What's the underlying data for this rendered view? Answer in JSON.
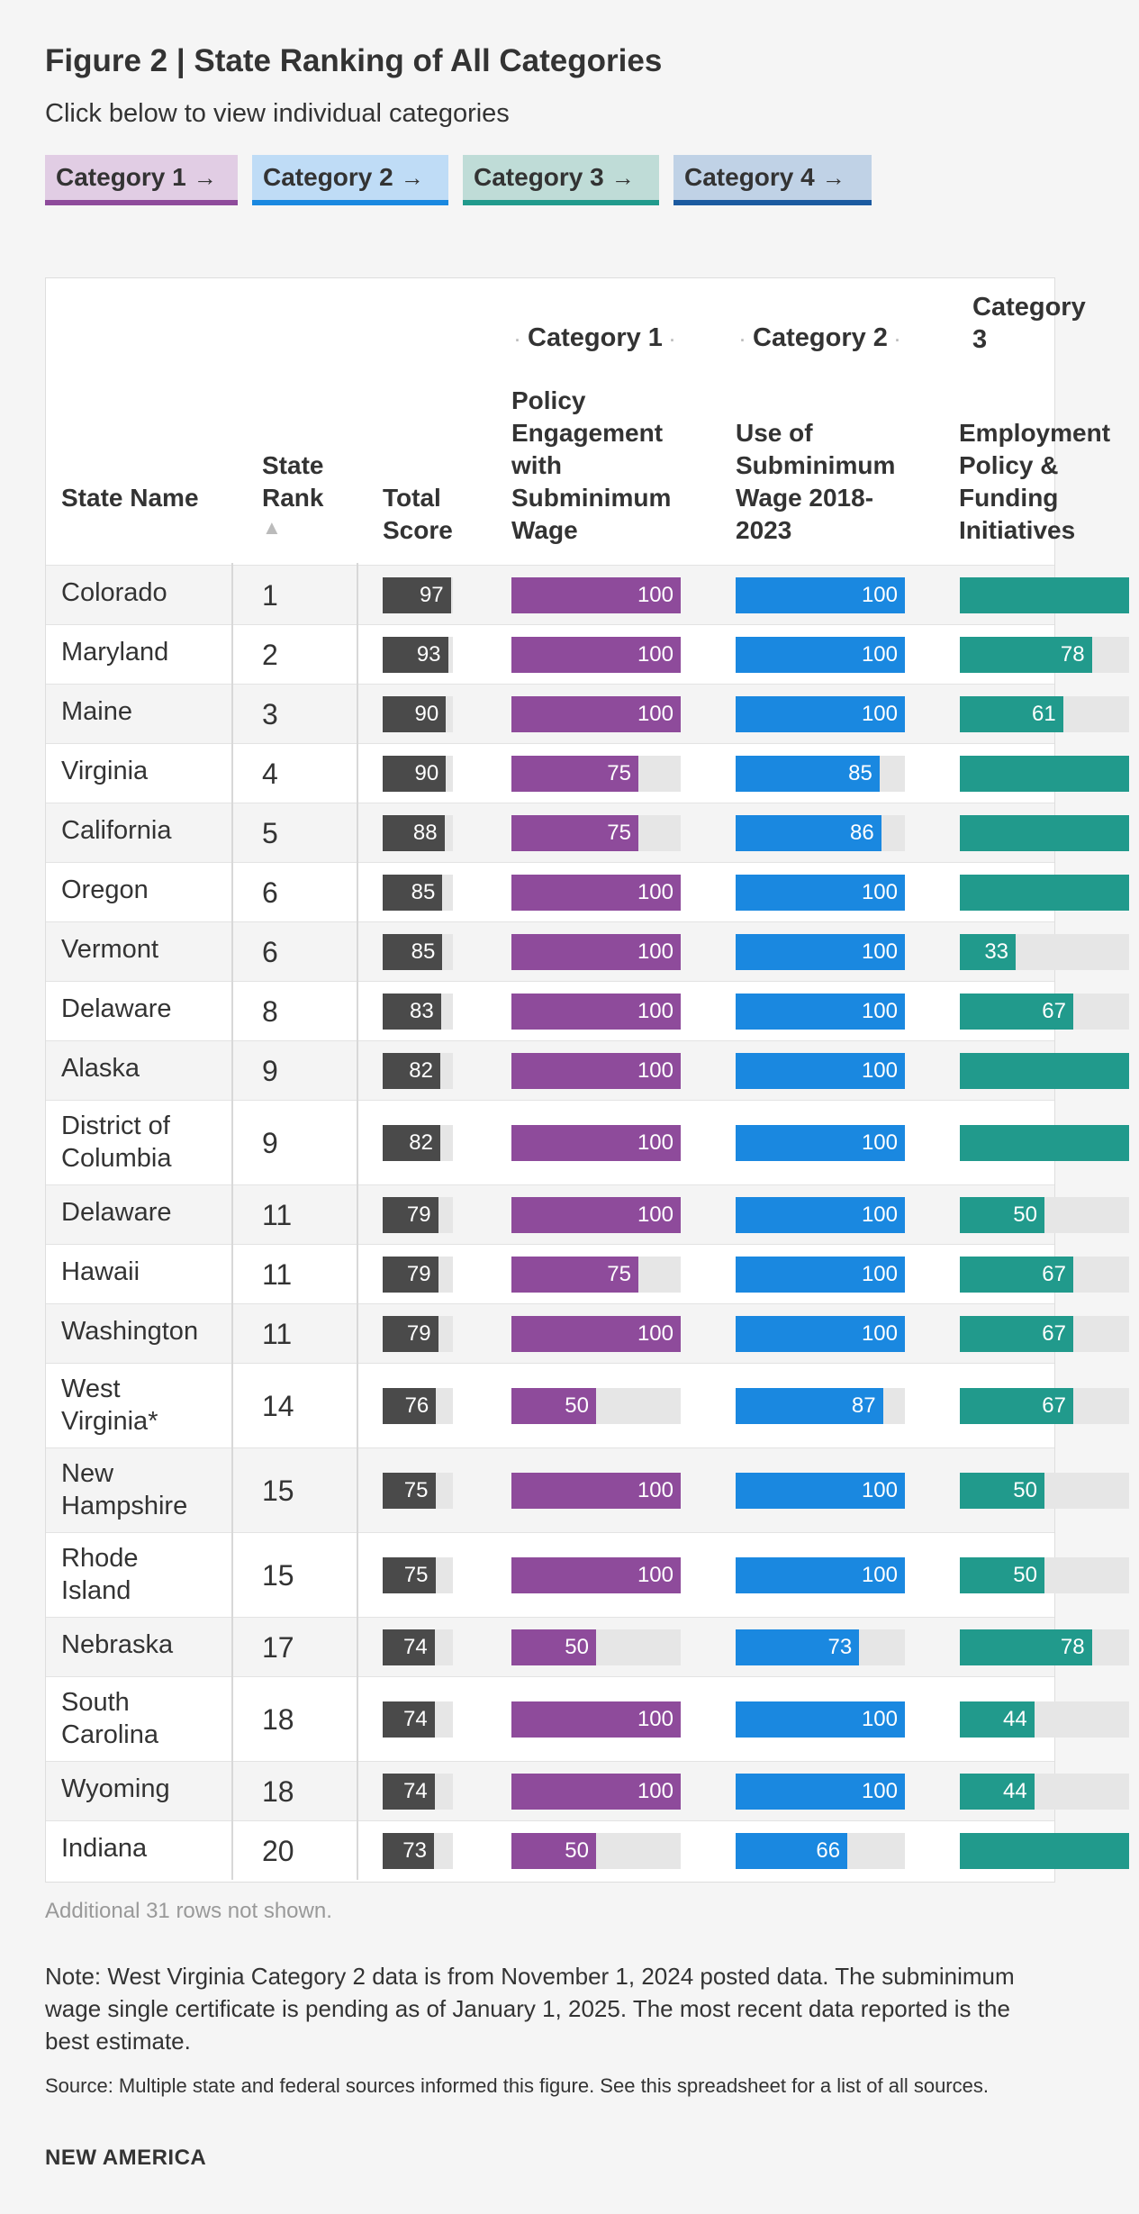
{
  "title": "Figure 2 | State Ranking of All Categories",
  "subtitle": "Click below to view individual categories",
  "buttons": [
    {
      "label": "Category 1",
      "bg": "#e1cde4",
      "border": "#8e4b9b"
    },
    {
      "label": "Category 2",
      "bg": "#bfdcf6",
      "border": "#1a88e0"
    },
    {
      "label": "Category 3",
      "bg": "#bfdcd7",
      "border": "#219a8c"
    },
    {
      "label": "Category 4",
      "bg": "#c0d2e6",
      "border": "#1b5aa0"
    }
  ],
  "headers": {
    "state_name": "State Name",
    "state_rank": "State Rank",
    "sort_indicator": "▲",
    "total_score": "Total Score",
    "group1": "Category 1",
    "group2": "Category 2",
    "group3": "Category 3",
    "col1": "Policy Engagement with Subminimum Wage",
    "col2": "Use of Subminimum Wage 2018-2023",
    "col3": "Employment Policy & Funding Initiatives"
  },
  "colors": {
    "total": "#4a4a4a",
    "cat1": "#8e4b9b",
    "cat2": "#1a88e0",
    "cat3": "#219a8c"
  },
  "chart_data": {
    "type": "table",
    "columns": [
      "State Name",
      "State Rank",
      "Total Score",
      "Policy Engagement with Subminimum Wage",
      "Use of Subminimum Wage 2018-2023",
      "Employment Policy & Funding Initiatives"
    ],
    "max_value": 100,
    "rows": [
      {
        "state": "Colorado",
        "rank": "1",
        "total": 97,
        "cat1": 100,
        "cat2": 100,
        "cat3": 100,
        "cat3_label": ""
      },
      {
        "state": "Maryland",
        "rank": "2",
        "total": 93,
        "cat1": 100,
        "cat2": 100,
        "cat3": 78,
        "cat3_label": "78"
      },
      {
        "state": "Maine",
        "rank": "3",
        "total": 90,
        "cat1": 100,
        "cat2": 100,
        "cat3": 61,
        "cat3_label": "61"
      },
      {
        "state": "Virginia",
        "rank": "4",
        "total": 90,
        "cat1": 75,
        "cat2": 85,
        "cat3": 100,
        "cat3_label": ""
      },
      {
        "state": "California",
        "rank": "5",
        "total": 88,
        "cat1": 75,
        "cat2": 86,
        "cat3": 100,
        "cat3_label": ""
      },
      {
        "state": "Oregon",
        "rank": "6",
        "total": 85,
        "cat1": 100,
        "cat2": 100,
        "cat3": 100,
        "cat3_label": ""
      },
      {
        "state": "Vermont",
        "rank": "6",
        "total": 85,
        "cat1": 100,
        "cat2": 100,
        "cat3": 33,
        "cat3_label": "33"
      },
      {
        "state": "Delaware",
        "rank": "8",
        "total": 83,
        "cat1": 100,
        "cat2": 100,
        "cat3": 67,
        "cat3_label": "67"
      },
      {
        "state": "Alaska",
        "rank": "9",
        "total": 82,
        "cat1": 100,
        "cat2": 100,
        "cat3": 100,
        "cat3_label": ""
      },
      {
        "state": "District of Columbia",
        "rank": "9",
        "total": 82,
        "cat1": 100,
        "cat2": 100,
        "cat3": 100,
        "cat3_label": ""
      },
      {
        "state": "Delaware",
        "rank": "11",
        "total": 79,
        "cat1": 100,
        "cat2": 100,
        "cat3": 50,
        "cat3_label": "50"
      },
      {
        "state": "Hawaii",
        "rank": "11",
        "total": 79,
        "cat1": 75,
        "cat2": 100,
        "cat3": 67,
        "cat3_label": "67"
      },
      {
        "state": "Washington",
        "rank": "11",
        "total": 79,
        "cat1": 100,
        "cat2": 100,
        "cat3": 67,
        "cat3_label": "67"
      },
      {
        "state": "West Virginia*",
        "rank": "14",
        "total": 76,
        "cat1": 50,
        "cat2": 87,
        "cat3": 67,
        "cat3_label": "67"
      },
      {
        "state": "New Hampshire",
        "rank": "15",
        "total": 75,
        "cat1": 100,
        "cat2": 100,
        "cat3": 50,
        "cat3_label": "50"
      },
      {
        "state": "Rhode Island",
        "rank": "15",
        "total": 75,
        "cat1": 100,
        "cat2": 100,
        "cat3": 50,
        "cat3_label": "50"
      },
      {
        "state": "Nebraska",
        "rank": "17",
        "total": 74,
        "cat1": 50,
        "cat2": 73,
        "cat3": 78,
        "cat3_label": "78"
      },
      {
        "state": "South Carolina",
        "rank": "18",
        "total": 74,
        "cat1": 100,
        "cat2": 100,
        "cat3": 44,
        "cat3_label": "44"
      },
      {
        "state": "Wyoming",
        "rank": "18",
        "total": 74,
        "cat1": 100,
        "cat2": 100,
        "cat3": 44,
        "cat3_label": "44"
      },
      {
        "state": "Indiana",
        "rank": "20",
        "total": 73,
        "cat1": 50,
        "cat2": 66,
        "cat3": 100,
        "cat3_label": ""
      }
    ]
  },
  "footer": {
    "rows_hidden": "Additional 31 rows not shown.",
    "note": "Note: West Virginia Category 2 data is from November 1, 2024 posted data. The subminimum wage single certificate is pending as of January 1, 2025. The most recent data reported is the best estimate.",
    "source": "Source: Multiple state and federal sources informed this figure. See this spreadsheet for a list of all sources.",
    "brand": "NEW AMERICA"
  }
}
